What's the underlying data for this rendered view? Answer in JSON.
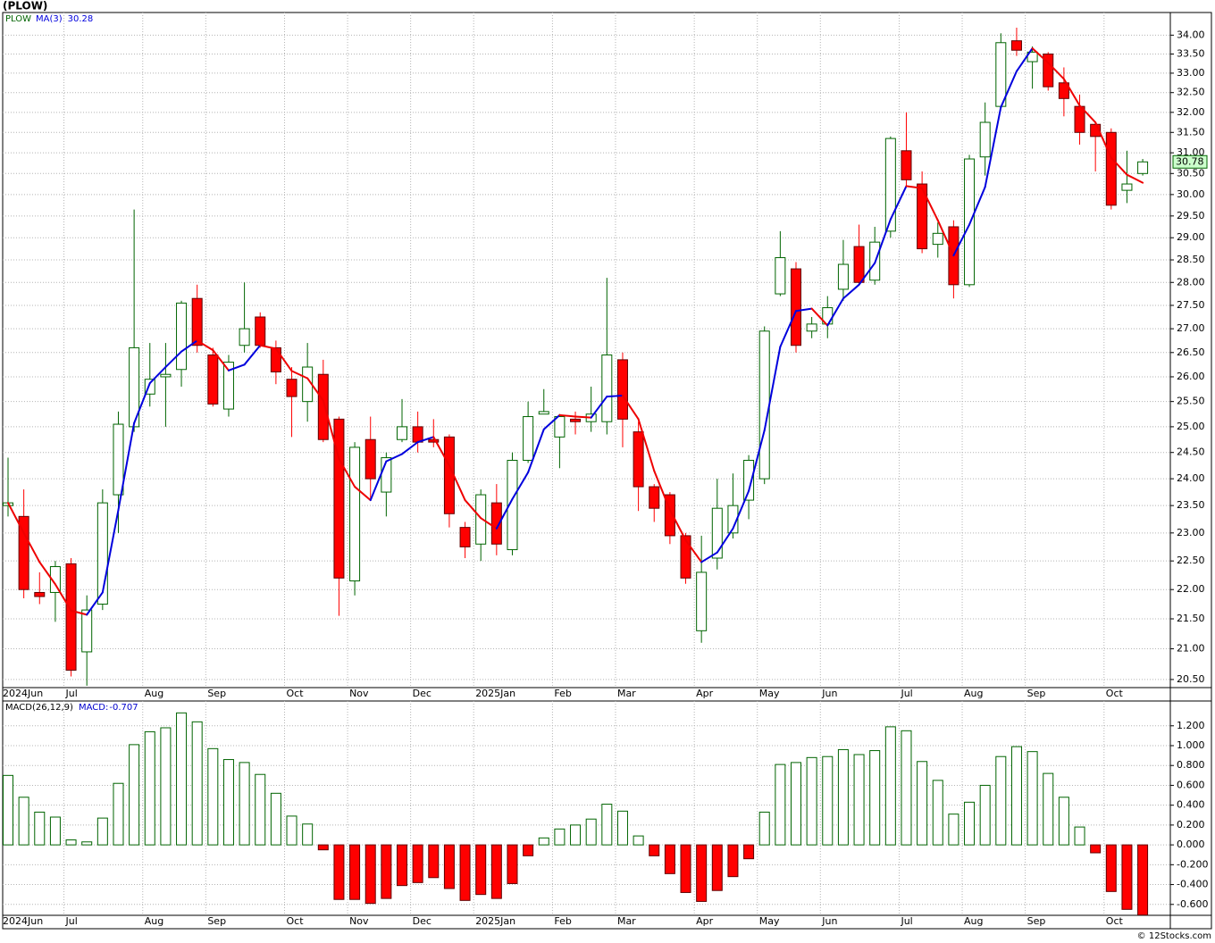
{
  "chart_data": [
    {
      "type": "candlestick",
      "title": "(PLOW)",
      "name": "PLOW",
      "categories": [
        "2024Jun",
        null,
        null,
        null,
        "Jul",
        null,
        null,
        null,
        null,
        "Aug",
        null,
        null,
        null,
        "Sep",
        null,
        null,
        null,
        null,
        "Oct",
        null,
        null,
        null,
        "Nov",
        null,
        null,
        null,
        "Dec",
        null,
        null,
        null,
        "2025Jan",
        null,
        null,
        null,
        null,
        "Feb",
        null,
        null,
        null,
        "Mar",
        null,
        null,
        null,
        null,
        "Apr",
        null,
        null,
        null,
        "May",
        null,
        null,
        null,
        "Jun",
        null,
        null,
        null,
        null,
        "Jul",
        null,
        null,
        null,
        "Aug",
        null,
        null,
        null,
        "Sep",
        null,
        null,
        null,
        null,
        "Oct",
        null,
        null
      ],
      "open": [
        23.5,
        23.3,
        21.95,
        21.95,
        22.45,
        20.95,
        21.75,
        23.7,
        25.0,
        25.65,
        26.0,
        26.15,
        27.65,
        26.45,
        25.35,
        26.65,
        27.25,
        26.6,
        25.95,
        25.5,
        26.05,
        25.15,
        22.15,
        24.75,
        23.75,
        24.75,
        25.0,
        24.75,
        24.8,
        23.1,
        22.8,
        23.55,
        22.7,
        24.35,
        25.25,
        24.8,
        25.15,
        25.1,
        25.1,
        26.35,
        24.9,
        23.85,
        23.7,
        22.95,
        21.3,
        22.55,
        23.0,
        23.6,
        24.0,
        27.75,
        28.3,
        26.95,
        27.1,
        27.85,
        28.8,
        28.05,
        29.15,
        31.05,
        30.25,
        28.85,
        29.25,
        27.95,
        30.9,
        32.15,
        33.85,
        33.3,
        33.5,
        32.75,
        32.15,
        31.7,
        31.5,
        30.1,
        30.5
      ],
      "high": [
        24.4,
        23.8,
        22.3,
        22.5,
        22.55,
        21.9,
        23.8,
        25.3,
        29.65,
        26.7,
        26.7,
        27.6,
        27.95,
        26.6,
        26.45,
        28.0,
        27.35,
        26.75,
        26.2,
        26.7,
        26.35,
        25.2,
        24.7,
        25.2,
        24.5,
        25.55,
        25.3,
        25.15,
        24.85,
        23.2,
        23.8,
        23.9,
        24.5,
        25.5,
        25.75,
        25.25,
        25.3,
        25.8,
        28.1,
        26.5,
        25.1,
        23.9,
        23.75,
        23.0,
        22.95,
        24.0,
        24.1,
        24.45,
        27.05,
        29.15,
        28.45,
        27.25,
        27.7,
        28.95,
        29.3,
        29.25,
        31.4,
        32.0,
        30.55,
        29.35,
        29.4,
        30.95,
        32.25,
        34.05,
        34.2,
        33.7,
        33.55,
        33.15,
        32.45,
        31.75,
        31.6,
        31.05,
        30.85
      ],
      "low": [
        23.3,
        21.85,
        21.75,
        21.45,
        20.55,
        20.4,
        21.65,
        23.0,
        24.9,
        25.4,
        25.0,
        25.8,
        26.5,
        25.4,
        25.2,
        26.5,
        26.6,
        25.85,
        24.8,
        25.1,
        24.7,
        21.55,
        21.9,
        23.6,
        23.3,
        24.7,
        24.5,
        24.6,
        23.1,
        22.55,
        22.5,
        22.6,
        22.6,
        24.3,
        25.25,
        24.2,
        24.85,
        24.9,
        24.85,
        24.6,
        23.4,
        23.2,
        22.8,
        22.1,
        21.1,
        22.35,
        22.9,
        23.25,
        23.9,
        27.7,
        26.5,
        26.8,
        26.8,
        27.6,
        27.95,
        27.95,
        29.0,
        30.2,
        28.65,
        28.55,
        27.65,
        27.9,
        30.45,
        32.1,
        33.45,
        32.6,
        32.55,
        31.9,
        31.2,
        30.55,
        29.65,
        29.8,
        30.45
      ],
      "close": [
        23.55,
        22.0,
        21.88,
        22.4,
        20.65,
        21.65,
        23.55,
        25.05,
        26.6,
        25.95,
        26.05,
        27.55,
        26.65,
        25.45,
        26.3,
        27.0,
        26.65,
        26.1,
        25.6,
        26.2,
        24.75,
        22.2,
        24.6,
        24.0,
        24.4,
        25.0,
        24.7,
        24.7,
        23.35,
        22.75,
        23.7,
        22.8,
        24.35,
        25.2,
        25.3,
        25.2,
        25.1,
        25.25,
        26.45,
        25.15,
        23.85,
        23.45,
        22.95,
        22.2,
        22.3,
        23.45,
        23.5,
        24.35,
        26.95,
        28.55,
        26.65,
        27.1,
        27.45,
        28.4,
        28.0,
        28.9,
        31.35,
        30.35,
        28.75,
        29.1,
        27.95,
        30.85,
        31.75,
        33.8,
        33.6,
        33.55,
        32.65,
        32.35,
        31.5,
        31.4,
        29.75,
        30.25,
        30.78
      ],
      "up_color": "#006400",
      "down_color": "#ff0000",
      "series": [
        {
          "name": "MA(3)",
          "up_color": "#0000dd",
          "down_color": "#ee0000",
          "values": [
            23.55,
            23.0,
            22.48,
            22.09,
            21.64,
            21.57,
            21.95,
            23.42,
            25.07,
            25.87,
            26.2,
            26.52,
            26.75,
            26.55,
            26.13,
            26.25,
            26.65,
            26.58,
            26.12,
            25.97,
            25.52,
            24.38,
            23.85,
            23.6,
            24.33,
            24.47,
            24.7,
            24.8,
            24.25,
            23.6,
            23.27,
            23.08,
            23.62,
            24.12,
            24.95,
            25.23,
            25.2,
            25.18,
            25.6,
            25.62,
            25.15,
            24.15,
            23.42,
            22.87,
            22.48,
            22.65,
            23.08,
            23.77,
            24.93,
            26.62,
            27.38,
            27.43,
            27.07,
            27.65,
            27.95,
            28.43,
            29.42,
            30.2,
            30.15,
            29.4,
            28.6,
            29.3,
            30.18,
            32.13,
            33.05,
            33.65,
            33.27,
            32.85,
            32.17,
            31.75,
            30.88,
            30.47,
            30.28
          ]
        }
      ],
      "ylim": [
        20.37,
        34.61
      ],
      "log_scale": true,
      "grid": true,
      "yticks": [
        {
          "value": 20.5,
          "label": "20.50"
        },
        {
          "value": 21,
          "label": "21.00"
        },
        {
          "value": 21.5,
          "label": "21.50"
        },
        {
          "value": 22,
          "label": "22.00"
        },
        {
          "value": 22.5,
          "label": "22.50"
        },
        {
          "value": 23,
          "label": "23.00"
        },
        {
          "value": 23.5,
          "label": "23.50"
        },
        {
          "value": 24,
          "label": "24.00"
        },
        {
          "value": 24.5,
          "label": "24.50"
        },
        {
          "value": 25,
          "label": "25.00"
        },
        {
          "value": 25.5,
          "label": "25.50"
        },
        {
          "value": 26,
          "label": "26.00"
        },
        {
          "value": 26.5,
          "label": "26.50"
        },
        {
          "value": 27,
          "label": "27.00"
        },
        {
          "value": 27.5,
          "label": "27.50"
        },
        {
          "value": 28,
          "label": "28.00"
        },
        {
          "value": 28.5,
          "label": "28.50"
        },
        {
          "value": 29,
          "label": "29.00"
        },
        {
          "value": 29.5,
          "label": "29.50"
        },
        {
          "value": 30,
          "label": "30.00"
        },
        {
          "value": 30.5,
          "label": "30.50"
        },
        {
          "value": 31,
          "label": "31.00"
        },
        {
          "value": 31.5,
          "label": "31.50"
        },
        {
          "value": 32,
          "label": "32.00"
        },
        {
          "value": 32.5,
          "label": "32.50"
        },
        {
          "value": 33,
          "label": "33.00"
        },
        {
          "value": 33.5,
          "label": "33.50"
        },
        {
          "value": 34,
          "label": "34.00"
        }
      ]
    },
    {
      "type": "bar",
      "title": "MACD(26,12,9)",
      "categories": [
        "2024Jun",
        null,
        null,
        null,
        "Jul",
        null,
        null,
        null,
        null,
        "Aug",
        null,
        null,
        null,
        "Sep",
        null,
        null,
        null,
        null,
        "Oct",
        null,
        null,
        null,
        "Nov",
        null,
        null,
        null,
        "Dec",
        null,
        null,
        null,
        "2025Jan",
        null,
        null,
        null,
        null,
        "Feb",
        null,
        null,
        null,
        "Mar",
        null,
        null,
        null,
        null,
        "Apr",
        null,
        null,
        null,
        "May",
        null,
        null,
        null,
        "Jun",
        null,
        null,
        null,
        null,
        "Jul",
        null,
        null,
        null,
        "Aug",
        null,
        null,
        null,
        "Sep",
        null,
        null,
        null,
        null,
        "Oct",
        null,
        null
      ],
      "series": [
        {
          "name": "MACD:",
          "label_color": "#0000cc",
          "up_color": "#006400",
          "down_color": "#ff0000",
          "values": [
            0.7,
            0.48,
            0.33,
            0.28,
            0.05,
            0.03,
            0.27,
            0.62,
            1.01,
            1.14,
            1.18,
            1.33,
            1.24,
            0.97,
            0.86,
            0.83,
            0.71,
            0.52,
            0.29,
            0.21,
            -0.05,
            -0.55,
            -0.55,
            -0.59,
            -0.54,
            -0.41,
            -0.38,
            -0.33,
            -0.44,
            -0.56,
            -0.5,
            -0.54,
            -0.39,
            -0.11,
            0.07,
            0.16,
            0.2,
            0.26,
            0.41,
            0.34,
            0.09,
            -0.11,
            -0.29,
            -0.48,
            -0.57,
            -0.46,
            -0.32,
            -0.14,
            0.33,
            0.81,
            0.83,
            0.88,
            0.89,
            0.96,
            0.91,
            0.95,
            1.19,
            1.15,
            0.84,
            0.65,
            0.31,
            0.43,
            0.6,
            0.89,
            0.99,
            0.94,
            0.72,
            0.48,
            0.18,
            -0.08,
            -0.47,
            -0.65,
            -0.707
          ]
        }
      ],
      "ylim": [
        -0.71,
        1.45
      ],
      "grid": true,
      "yticks": [
        {
          "value": -0.6,
          "label": "-0.600"
        },
        {
          "value": -0.4,
          "label": "-0.400"
        },
        {
          "value": -0.2,
          "label": "-0.200"
        },
        {
          "value": 0,
          "label": "0.000"
        },
        {
          "value": 0.2,
          "label": "0.200"
        },
        {
          "value": 0.4,
          "label": "0.400"
        },
        {
          "value": 0.6,
          "label": "0.600"
        },
        {
          "value": 0.8,
          "label": "0.800"
        },
        {
          "value": 1,
          "label": "1.000"
        },
        {
          "value": 1.2,
          "label": "1.200"
        }
      ]
    }
  ],
  "credit": "© 12Stocks.com"
}
